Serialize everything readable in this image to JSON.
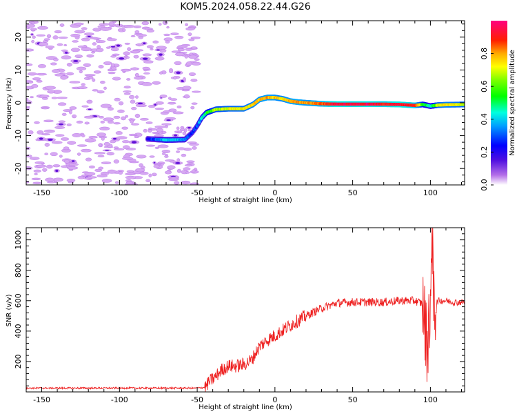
{
  "title": "KOM5.2024.058.22.44.G26",
  "colors": {
    "snr_line": "#ee2222",
    "scatter_fill": "#d6a8f2",
    "scatter_edge": "#b26ce6"
  },
  "chart_data": [
    {
      "type": "heatmap",
      "xlabel": "Height of straight line (km)",
      "ylabel": "Frequency (Hz)",
      "xlim": [
        -160,
        122
      ],
      "ylim": [
        -25,
        25
      ],
      "xticks": [
        -150,
        -100,
        -50,
        0,
        50,
        100
      ],
      "yticks": [
        -20,
        -10,
        0,
        10,
        20
      ],
      "colorbar": {
        "label": "Normalized spectral amplitude",
        "range": [
          0,
          1
        ],
        "ticks": [
          "0.0",
          "0.2",
          "0.4",
          "0.6",
          "0.8"
        ],
        "colormap": "rainbow (violet-blue-cyan-green-yellow-red-pink)"
      },
      "ridge": {
        "description": "dominant frequency versus height",
        "height_km": [
          -82,
          -70,
          -58,
          -53,
          -50,
          -47,
          -44,
          -38,
          -30,
          -20,
          -14,
          -10,
          -5,
          0,
          5,
          10,
          15,
          20,
          30,
          40,
          50,
          60,
          70,
          80,
          90,
          95,
          100,
          105,
          110,
          122
        ],
        "frequency_hz": [
          -11,
          -11.3,
          -11.2,
          -9,
          -7,
          -4.5,
          -3,
          -2,
          -1.8,
          -1.8,
          -0.5,
          1,
          1.6,
          1.6,
          1.2,
          0.5,
          0.2,
          0,
          -0.3,
          -0.4,
          -0.4,
          -0.4,
          -0.4,
          -0.5,
          -0.8,
          -0.5,
          -1,
          -0.7,
          -0.6,
          -0.5
        ],
        "amplitude": [
          0.2,
          0.4,
          0.35,
          0.25,
          0.3,
          0.4,
          0.5,
          0.65,
          0.7,
          0.72,
          0.75,
          0.78,
          0.8,
          0.78,
          0.75,
          0.8,
          0.82,
          0.78,
          0.85,
          0.95,
          0.92,
          0.95,
          0.9,
          0.95,
          0.9,
          0.6,
          0.4,
          0.7,
          0.75,
          0.7
        ]
      },
      "noise": {
        "description": "low-amplitude scattered noise for heights below about -50 km",
        "height_range_km": [
          -160,
          -50
        ],
        "amplitude": 0.05
      },
      "grid": false
    },
    {
      "type": "line",
      "xlabel": "Height of straight line (km)",
      "ylabel": "SNR (v/v)",
      "xlim": [
        -160,
        122
      ],
      "ylim": [
        0,
        1080
      ],
      "xticks": [
        -150,
        -100,
        -50,
        0,
        50,
        100
      ],
      "yticks": [
        200,
        400,
        600,
        800,
        1000
      ],
      "series": [
        {
          "x": [
            -160,
            -140,
            -120,
            -100,
            -80,
            -60,
            -50,
            -45,
            -42,
            -38,
            -35,
            -30,
            -25,
            -20,
            -15,
            -10,
            -5,
            0,
            10,
            20,
            30,
            40,
            50,
            60,
            70,
            80,
            90,
            95,
            98,
            100,
            101,
            102,
            105,
            110,
            115,
            122
          ],
          "y": [
            25,
            25,
            25,
            25,
            25,
            25,
            25,
            30,
            70,
            100,
            140,
            170,
            170,
            180,
            210,
            300,
            340,
            370,
            440,
            500,
            550,
            585,
            590,
            590,
            590,
            600,
            600,
            580,
            300,
            600,
            1000,
            560,
            600,
            600,
            590,
            590
          ]
        }
      ],
      "grid": false
    }
  ]
}
